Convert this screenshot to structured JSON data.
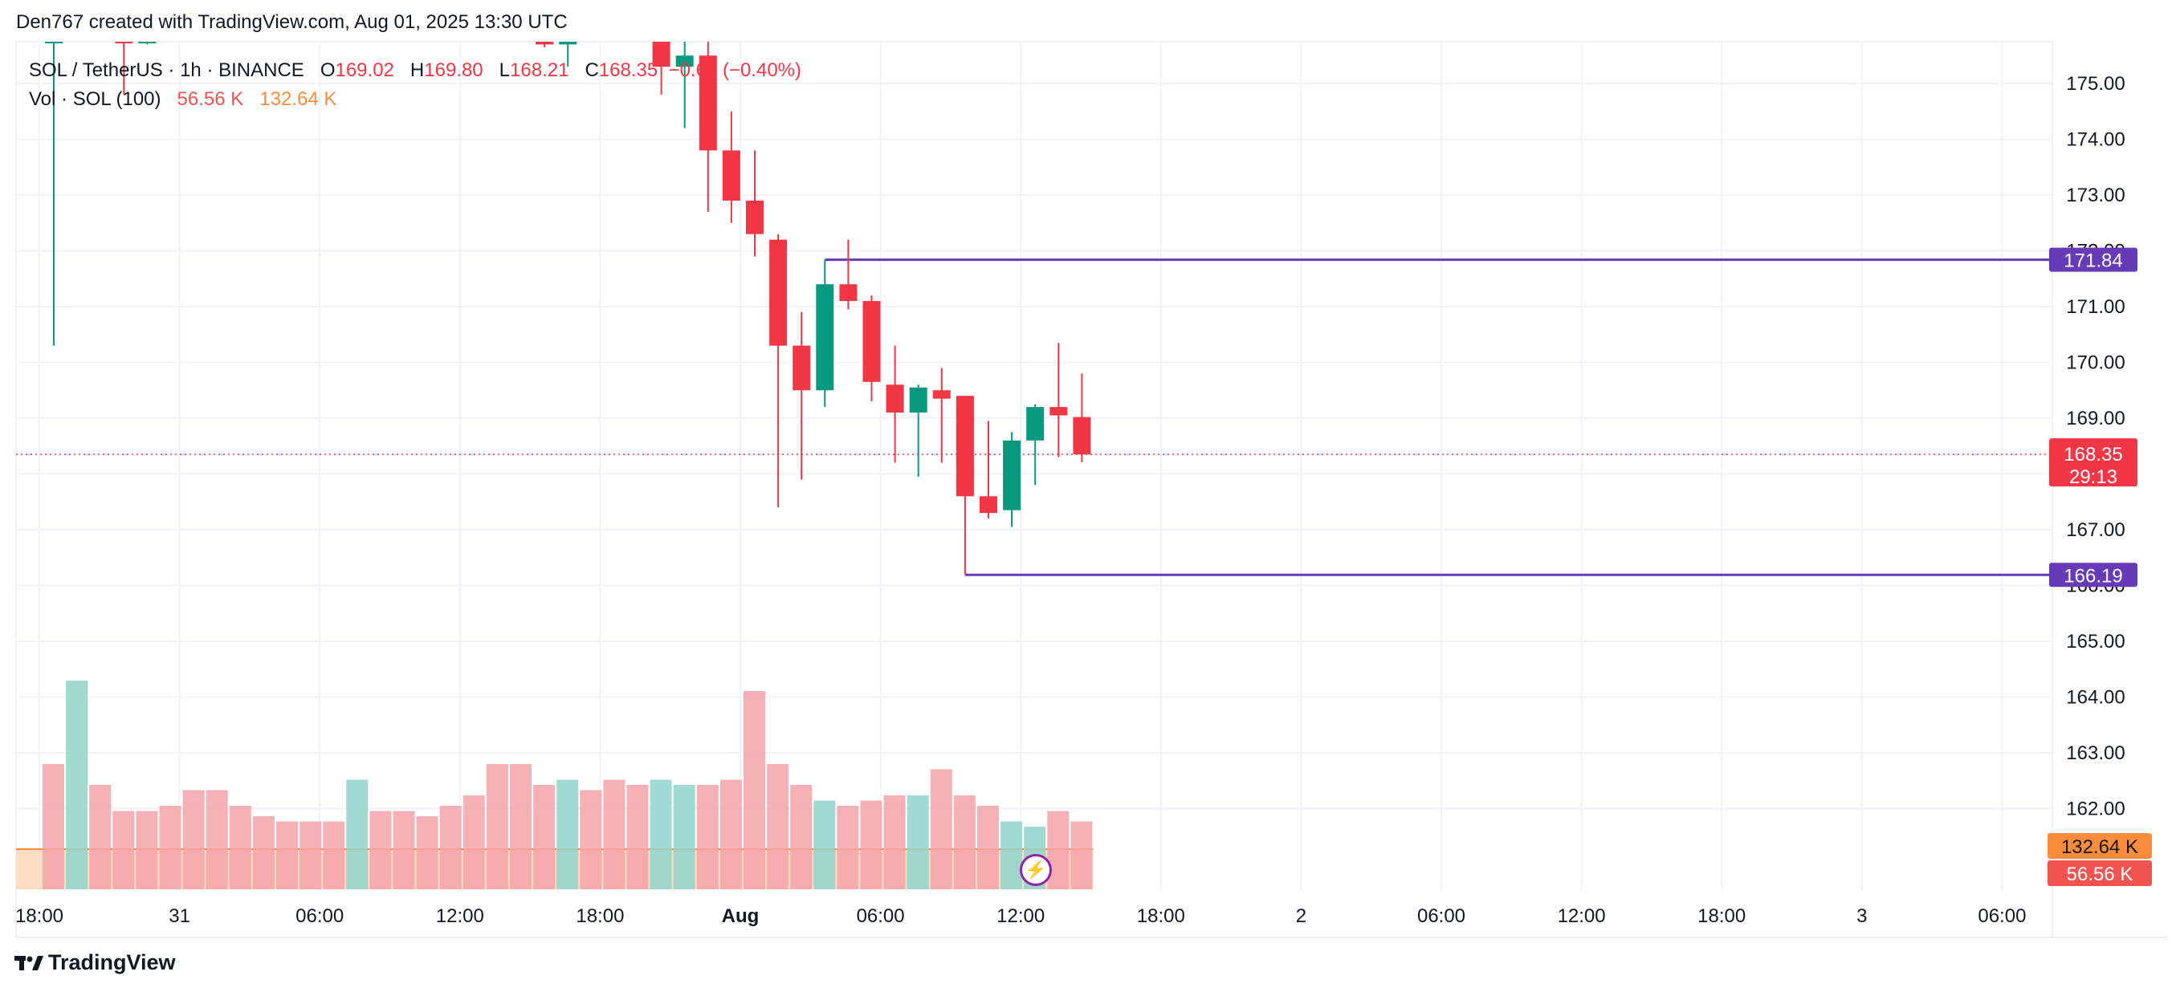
{
  "header": {
    "attribution": "Den767 created with TradingView.com, Aug 01, 2025 13:30 UTC"
  },
  "legend": {
    "symbol": "SOL / TetherUS · 1h · BINANCE",
    "o_label": "O",
    "o_value": "169.02",
    "h_label": "H",
    "h_value": "169.80",
    "l_label": "L",
    "l_value": "168.21",
    "c_label": "C",
    "c_value": "168.35",
    "change": "−0.67 (−0.40%)",
    "vol_label": "Vol · SOL (100)",
    "vol_value": "56.56 K",
    "vol_ma": "132.64 K"
  },
  "colors": {
    "up": "#089981",
    "down": "#f23645",
    "level": "#673ab7",
    "vol_up": "#8fd3cb",
    "vol_down": "#f5a3a9",
    "vol_ma": "#fb8c3c"
  },
  "chart_data": {
    "type": "candlestick",
    "symbol": "SOL / TetherUS",
    "interval": "1h",
    "exchange": "BINANCE",
    "y_ticks": [
      "175.00",
      "174.00",
      "173.00",
      "172.00",
      "171.00",
      "170.00",
      "169.00",
      "168.00",
      "167.00",
      "166.00",
      "165.00",
      "164.00",
      "163.00",
      "162.00"
    ],
    "ylim": [
      161.5,
      175.7
    ],
    "x_ticks": [
      "18:00",
      "31",
      "06:00",
      "12:00",
      "18:00",
      "Aug",
      "06:00",
      "12:00",
      "18:00",
      "2",
      "06:00",
      "12:00",
      "18:00",
      "3",
      "06:00"
    ],
    "x_tick_bars": [
      0,
      6,
      12,
      18,
      24,
      30,
      36,
      42,
      48,
      54,
      60,
      66,
      72,
      78,
      84
    ],
    "candles": [
      {
        "i": 0,
        "o": 175.9,
        "h": 176.2,
        "l": 170.3,
        "c": 176.0
      },
      {
        "i": 3,
        "o": 176.0,
        "h": 176.2,
        "l": 174.8,
        "c": 175.8
      },
      {
        "i": 4,
        "o": 175.9,
        "h": 176.3,
        "l": 175.7,
        "c": 175.95
      },
      {
        "i": 21,
        "o": 175.75,
        "h": 175.95,
        "l": 175.65,
        "c": 175.7
      },
      {
        "i": 22,
        "o": 175.7,
        "h": 175.9,
        "l": 175.3,
        "c": 175.75
      },
      {
        "i": 26,
        "o": 175.9,
        "h": 176.4,
        "l": 174.8,
        "c": 175.3
      },
      {
        "i": 27,
        "o": 175.3,
        "h": 175.9,
        "l": 174.2,
        "c": 175.5
      },
      {
        "i": 28,
        "o": 175.5,
        "h": 175.9,
        "l": 172.7,
        "c": 173.8
      },
      {
        "i": 29,
        "o": 173.8,
        "h": 174.5,
        "l": 172.5,
        "c": 172.9
      },
      {
        "i": 30,
        "o": 172.9,
        "h": 173.8,
        "l": 171.9,
        "c": 172.3
      },
      {
        "i": 31,
        "o": 172.2,
        "h": 172.3,
        "l": 167.4,
        "c": 170.3
      },
      {
        "i": 32,
        "o": 170.3,
        "h": 170.9,
        "l": 167.9,
        "c": 169.5
      },
      {
        "i": 33,
        "o": 169.5,
        "h": 171.84,
        "l": 169.2,
        "c": 171.4
      },
      {
        "i": 34,
        "o": 171.4,
        "h": 172.2,
        "l": 170.95,
        "c": 171.1
      },
      {
        "i": 35,
        "o": 171.1,
        "h": 171.2,
        "l": 169.3,
        "c": 169.65
      },
      {
        "i": 36,
        "o": 169.6,
        "h": 170.3,
        "l": 168.2,
        "c": 169.1
      },
      {
        "i": 37,
        "o": 169.1,
        "h": 169.6,
        "l": 167.95,
        "c": 169.55
      },
      {
        "i": 38,
        "o": 169.5,
        "h": 169.9,
        "l": 168.2,
        "c": 169.35
      },
      {
        "i": 39,
        "o": 169.4,
        "h": 169.4,
        "l": 166.19,
        "c": 167.6
      },
      {
        "i": 40,
        "o": 167.6,
        "h": 168.95,
        "l": 167.2,
        "c": 167.3
      },
      {
        "i": 41,
        "o": 167.35,
        "h": 168.75,
        "l": 167.05,
        "c": 168.6
      },
      {
        "i": 42,
        "o": 168.6,
        "h": 169.25,
        "l": 167.8,
        "c": 169.2
      },
      {
        "i": 43,
        "o": 169.2,
        "h": 170.35,
        "l": 168.3,
        "c": 169.05
      },
      {
        "i": 44,
        "o": 169.02,
        "h": 169.8,
        "l": 168.21,
        "c": 168.35
      }
    ],
    "volume_bars": [
      2.4,
      4.0,
      2.0,
      1.5,
      1.5,
      1.6,
      1.9,
      1.9,
      1.6,
      1.4,
      1.3,
      1.3,
      1.3,
      2.1,
      1.5,
      1.5,
      1.4,
      1.6,
      1.8,
      2.4,
      2.4,
      2.0,
      2.1,
      1.9,
      2.1,
      2.0,
      2.1,
      2.0,
      2.0,
      2.1,
      3.8,
      2.4,
      2.0,
      1.7,
      1.6,
      1.7,
      1.8,
      1.8,
      2.3,
      1.8,
      1.6,
      1.3,
      1.2,
      1.5,
      1.3
    ],
    "volume_up": [
      false,
      true,
      false,
      false,
      false,
      false,
      false,
      false,
      false,
      false,
      false,
      false,
      false,
      true,
      false,
      false,
      false,
      false,
      false,
      false,
      false,
      false,
      true,
      false,
      false,
      false,
      true,
      true,
      false,
      false,
      false,
      false,
      false,
      true,
      false,
      false,
      false,
      true,
      false,
      false,
      false,
      true,
      true,
      false,
      false
    ],
    "price_levels": [
      {
        "label": "171.84",
        "value": 171.84,
        "from_bar": 33
      },
      {
        "label": "166.19",
        "value": 166.19,
        "from_bar": 39
      }
    ],
    "last_price": {
      "label": "168.35",
      "value": 168.35,
      "countdown": "29:13"
    },
    "volume_labels": {
      "ma": "132.64 K",
      "last": "56.56 K"
    }
  }
}
